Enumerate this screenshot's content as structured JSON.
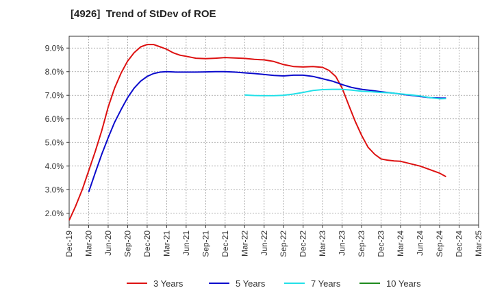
{
  "chart_data": {
    "type": "line",
    "title": "[4926]  Trend of StDev of ROE",
    "xlabel": "",
    "ylabel": "",
    "x_labels": [
      "Dec-19",
      "Mar-20",
      "Jun-20",
      "Sep-20",
      "Dec-20",
      "Mar-21",
      "Jun-21",
      "Sep-21",
      "Dec-21",
      "Mar-22",
      "Jun-22",
      "Sep-22",
      "Dec-22",
      "Mar-23",
      "Jun-23",
      "Sep-23",
      "Dec-23",
      "Mar-24",
      "Jun-24",
      "Sep-24",
      "Dec-24",
      "Mar-25"
    ],
    "y_ticks": [
      "2.0%",
      "3.0%",
      "4.0%",
      "5.0%",
      "6.0%",
      "7.0%",
      "8.0%",
      "9.0%"
    ],
    "ylim": [
      1.5,
      9.5
    ],
    "grid": true,
    "legend_position": "bottom",
    "series": [
      {
        "name": "3 Years",
        "color": "#dd1111",
        "points": [
          [
            0,
            1.7
          ],
          [
            0.33,
            2.3
          ],
          [
            0.67,
            3.0
          ],
          [
            1.0,
            3.8
          ],
          [
            1.33,
            4.6
          ],
          [
            1.67,
            5.5
          ],
          [
            2.0,
            6.5
          ],
          [
            2.33,
            7.3
          ],
          [
            2.67,
            7.95
          ],
          [
            3.0,
            8.45
          ],
          [
            3.33,
            8.8
          ],
          [
            3.67,
            9.05
          ],
          [
            4.0,
            9.15
          ],
          [
            4.33,
            9.15
          ],
          [
            4.67,
            9.05
          ],
          [
            5.0,
            8.95
          ],
          [
            5.33,
            8.8
          ],
          [
            5.67,
            8.7
          ],
          [
            6.0,
            8.65
          ],
          [
            6.5,
            8.57
          ],
          [
            7.0,
            8.55
          ],
          [
            7.5,
            8.57
          ],
          [
            8.0,
            8.6
          ],
          [
            8.5,
            8.58
          ],
          [
            9.0,
            8.56
          ],
          [
            9.5,
            8.52
          ],
          [
            10.0,
            8.5
          ],
          [
            10.5,
            8.43
          ],
          [
            11.0,
            8.3
          ],
          [
            11.5,
            8.22
          ],
          [
            12.0,
            8.2
          ],
          [
            12.5,
            8.22
          ],
          [
            13.0,
            8.18
          ],
          [
            13.33,
            8.05
          ],
          [
            13.67,
            7.8
          ],
          [
            14.0,
            7.3
          ],
          [
            14.33,
            6.6
          ],
          [
            14.67,
            5.9
          ],
          [
            15.0,
            5.3
          ],
          [
            15.33,
            4.8
          ],
          [
            15.67,
            4.5
          ],
          [
            16.0,
            4.3
          ],
          [
            16.33,
            4.25
          ],
          [
            16.67,
            4.22
          ],
          [
            17.0,
            4.2
          ],
          [
            17.5,
            4.1
          ],
          [
            18.0,
            4.0
          ],
          [
            18.5,
            3.85
          ],
          [
            19.0,
            3.7
          ],
          [
            19.33,
            3.55
          ]
        ]
      },
      {
        "name": "5 Years",
        "color": "#0a0acc",
        "points": [
          [
            1.0,
            2.9
          ],
          [
            1.33,
            3.7
          ],
          [
            1.67,
            4.5
          ],
          [
            2.0,
            5.2
          ],
          [
            2.33,
            5.85
          ],
          [
            2.67,
            6.4
          ],
          [
            3.0,
            6.9
          ],
          [
            3.33,
            7.3
          ],
          [
            3.67,
            7.6
          ],
          [
            4.0,
            7.8
          ],
          [
            4.33,
            7.92
          ],
          [
            4.67,
            7.98
          ],
          [
            5.0,
            8.0
          ],
          [
            5.5,
            7.98
          ],
          [
            6.0,
            7.98
          ],
          [
            6.5,
            7.98
          ],
          [
            7.0,
            7.99
          ],
          [
            7.5,
            8.0
          ],
          [
            8.0,
            8.0
          ],
          [
            8.5,
            7.98
          ],
          [
            9.0,
            7.95
          ],
          [
            9.5,
            7.92
          ],
          [
            10.0,
            7.88
          ],
          [
            10.5,
            7.84
          ],
          [
            11.0,
            7.82
          ],
          [
            11.5,
            7.85
          ],
          [
            12.0,
            7.85
          ],
          [
            12.5,
            7.8
          ],
          [
            13.0,
            7.7
          ],
          [
            13.5,
            7.6
          ],
          [
            14.0,
            7.45
          ],
          [
            14.5,
            7.33
          ],
          [
            15.0,
            7.25
          ],
          [
            15.5,
            7.2
          ],
          [
            16.0,
            7.15
          ],
          [
            16.5,
            7.1
          ],
          [
            17.0,
            7.05
          ],
          [
            17.5,
            7.0
          ],
          [
            18.0,
            6.95
          ],
          [
            18.5,
            6.9
          ],
          [
            19.0,
            6.88
          ],
          [
            19.33,
            6.88
          ]
        ]
      },
      {
        "name": "7 Years",
        "color": "#22e0e8",
        "points": [
          [
            9.0,
            7.01
          ],
          [
            9.5,
            6.99
          ],
          [
            10.0,
            6.98
          ],
          [
            10.5,
            6.98
          ],
          [
            11.0,
            7.0
          ],
          [
            11.5,
            7.05
          ],
          [
            12.0,
            7.12
          ],
          [
            12.5,
            7.2
          ],
          [
            13.0,
            7.24
          ],
          [
            13.5,
            7.25
          ],
          [
            14.0,
            7.25
          ],
          [
            14.5,
            7.22
          ],
          [
            15.0,
            7.17
          ],
          [
            15.5,
            7.15
          ],
          [
            16.0,
            7.12
          ],
          [
            16.5,
            7.1
          ],
          [
            17.0,
            7.06
          ],
          [
            17.5,
            7.02
          ],
          [
            18.0,
            6.97
          ],
          [
            18.5,
            6.9
          ],
          [
            19.0,
            6.85
          ],
          [
            19.33,
            6.86
          ]
        ]
      },
      {
        "name": "10 Years",
        "color": "#1e8a1e",
        "points": []
      }
    ]
  }
}
